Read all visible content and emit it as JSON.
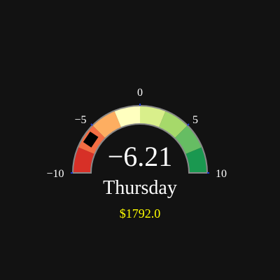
{
  "gauge": {
    "min": -10,
    "max": 10,
    "value": -6.21,
    "value_label": "−6.21",
    "day_label": "Thursday",
    "amount_label": "$1792.0",
    "tick_values": [
      -10,
      -5,
      0,
      5,
      10
    ],
    "tick_labels": [
      "−10",
      "−5",
      "0",
      "5",
      "10"
    ],
    "segments": [
      {
        "from": -10,
        "to": -7.5,
        "color": "#d73027"
      },
      {
        "from": -7.5,
        "to": -5,
        "color": "#f46d43"
      },
      {
        "from": -5,
        "to": -2.5,
        "color": "#fdae61"
      },
      {
        "from": -2.5,
        "to": 0,
        "color": "#ffffbf"
      },
      {
        "from": 0,
        "to": 2.5,
        "color": "#d9ef8b"
      },
      {
        "from": 2.5,
        "to": 5,
        "color": "#a6d96a"
      },
      {
        "from": 5,
        "to": 7.5,
        "color": "#66bd63"
      },
      {
        "from": 7.5,
        "to": 10,
        "color": "#1a9850"
      }
    ],
    "needle_color": "#000000",
    "amount_color": "#ffff00",
    "outline_color": "#888888"
  }
}
